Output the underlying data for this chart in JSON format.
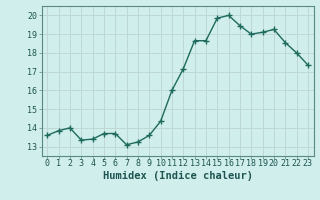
{
  "x": [
    0,
    1,
    2,
    3,
    4,
    5,
    6,
    7,
    8,
    9,
    10,
    11,
    12,
    13,
    14,
    15,
    16,
    17,
    18,
    19,
    20,
    21,
    22,
    23
  ],
  "y": [
    13.6,
    13.85,
    14.0,
    13.35,
    13.4,
    13.7,
    13.7,
    13.1,
    13.25,
    13.6,
    14.35,
    16.0,
    17.15,
    18.65,
    18.65,
    19.85,
    20.0,
    19.45,
    19.0,
    19.1,
    19.25,
    18.55,
    18.0,
    17.35
  ],
  "line_color": "#1e6b5e",
  "marker": "+",
  "marker_size": 4,
  "marker_linewidth": 1.0,
  "bg_color": "#d0eeeb",
  "grid_color": "#c0d8d5",
  "xlabel": "Humidex (Indice chaleur)",
  "xlim": [
    -0.5,
    23.5
  ],
  "ylim": [
    12.5,
    20.5
  ],
  "yticks": [
    13,
    14,
    15,
    16,
    17,
    18,
    19,
    20
  ],
  "xticks": [
    0,
    1,
    2,
    3,
    4,
    5,
    6,
    7,
    8,
    9,
    10,
    11,
    12,
    13,
    14,
    15,
    16,
    17,
    18,
    19,
    20,
    21,
    22,
    23
  ],
  "tick_label_fontsize": 6.0,
  "xlabel_fontsize": 7.5,
  "line_width": 1.0,
  "spine_color": "#5a8a84"
}
